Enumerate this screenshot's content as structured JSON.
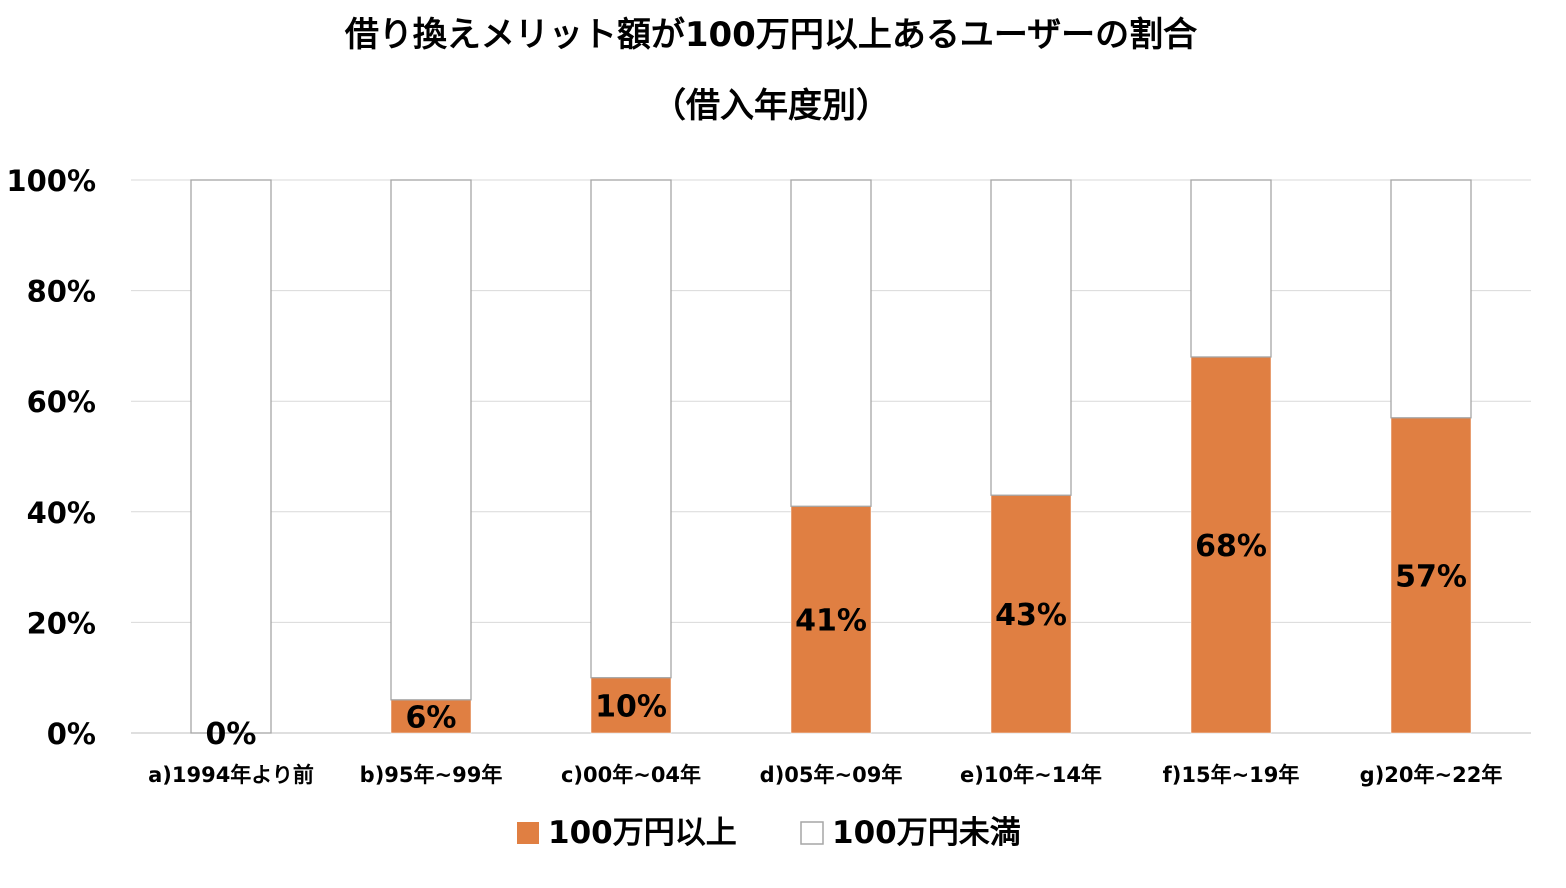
{
  "chart_data": {
    "type": "bar",
    "stacked": true,
    "title": "借り換えメリット額が100万円以上あるユーザーの割合",
    "subtitle": "（借入年度別）",
    "categories": [
      "a)1994年より前",
      "b)95年~99年",
      "c)00年~04年",
      "d)05年~09年",
      "e)10年~14年",
      "f)15年~19年",
      "g)20年~22年"
    ],
    "series": [
      {
        "name": "100万円以上",
        "color": "#e07f42",
        "values": [
          0,
          6,
          10,
          41,
          43,
          68,
          57
        ]
      },
      {
        "name": "100万円未満",
        "color": "#ffffff",
        "values": [
          100,
          94,
          90,
          59,
          57,
          32,
          43
        ]
      }
    ],
    "data_labels": [
      "0%",
      "6%",
      "10%",
      "41%",
      "43%",
      "68%",
      "57%"
    ],
    "y_ticks": [
      "0%",
      "20%",
      "40%",
      "60%",
      "80%",
      "100%"
    ],
    "ylim": [
      0,
      100
    ],
    "grid": true,
    "legend_position": "bottom"
  }
}
